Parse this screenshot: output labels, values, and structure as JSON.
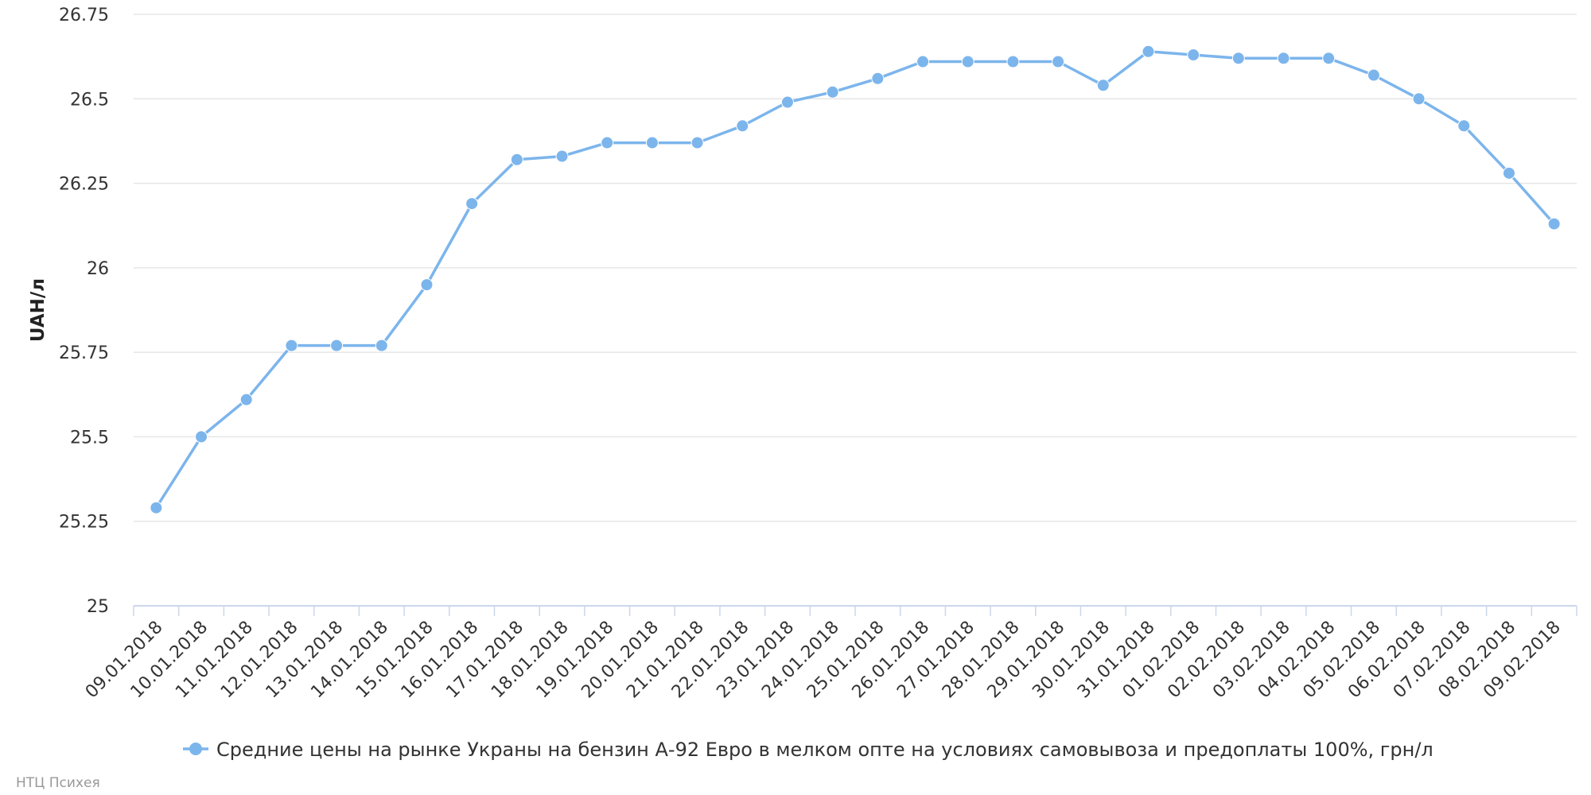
{
  "chart_data": {
    "type": "line",
    "ylabel": "UAH/л",
    "xlabel": "",
    "ylim": [
      25,
      26.75
    ],
    "yticks": [
      25,
      25.25,
      25.5,
      25.75,
      26,
      26.25,
      26.5,
      26.75
    ],
    "ytick_labels": [
      "25",
      "25.25",
      "25.5",
      "25.75",
      "26",
      "26.25",
      "26.5",
      "26.75"
    ],
    "grid": true,
    "legend_position": "bottom-center",
    "categories": [
      "09.01.2018",
      "10.01.2018",
      "11.01.2018",
      "12.01.2018",
      "13.01.2018",
      "14.01.2018",
      "15.01.2018",
      "16.01.2018",
      "17.01.2018",
      "18.01.2018",
      "19.01.2018",
      "20.01.2018",
      "21.01.2018",
      "22.01.2018",
      "23.01.2018",
      "24.01.2018",
      "25.01.2018",
      "26.01.2018",
      "27.01.2018",
      "28.01.2018",
      "29.01.2018",
      "30.01.2018",
      "31.01.2018",
      "01.02.2018",
      "02.02.2018",
      "03.02.2018",
      "04.02.2018",
      "05.02.2018",
      "06.02.2018",
      "07.02.2018",
      "08.02.2018",
      "09.02.2018"
    ],
    "series": [
      {
        "name": "Средние цены на рынке Украны на бензин А-92 Евро в мелком опте на условиях самовывоза и предоплаты 100%, грн/л",
        "color": "#7cb5ec",
        "values": [
          25.29,
          25.5,
          25.61,
          25.77,
          25.77,
          25.77,
          25.95,
          26.19,
          26.32,
          26.33,
          26.37,
          26.37,
          26.37,
          26.42,
          26.49,
          26.52,
          26.56,
          26.61,
          26.61,
          26.61,
          26.61,
          26.54,
          26.64,
          26.63,
          26.62,
          26.62,
          26.62,
          26.57,
          26.5,
          26.42,
          26.28,
          26.13
        ]
      }
    ]
  },
  "credit": "НТЦ Психея"
}
